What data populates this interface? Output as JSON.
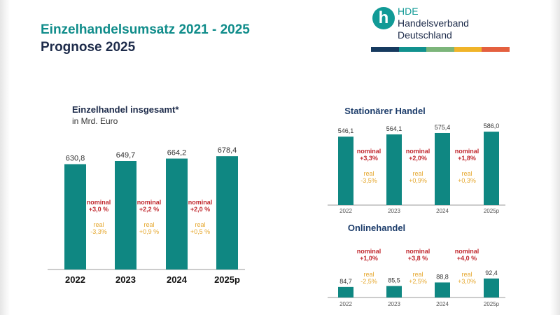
{
  "header": {
    "title_line1": "Einzelhandelsumsatz 2021 - 2025",
    "title_line2": "Prognose 2025"
  },
  "logo": {
    "abbr": "HDE",
    "name_line1": "Handelsverband",
    "name_line2": "Deutschland",
    "stripe_colors": [
      "#163a5f",
      "#11918e",
      "#7cb57a",
      "#f0b429",
      "#e4603f"
    ]
  },
  "colors": {
    "bar": "#0f8782",
    "nominal": "#c0282e",
    "real": "#e5a72d",
    "axis": "#9a9a9a",
    "text": "#333333",
    "section_title": "#1d3d6b"
  },
  "chart_data": [
    {
      "type": "bar",
      "title": "Einzelhandel insgesamt*",
      "subtitle": "in Mrd. Euro",
      "categories": [
        "2022",
        "2023",
        "2024",
        "2025p"
      ],
      "values": [
        630.8,
        649.7,
        664.2,
        678.4
      ],
      "value_labels": [
        "630,8",
        "649,7",
        "664,2",
        "678,4"
      ],
      "ylim": [
        0,
        700
      ],
      "annotations": [
        {
          "nominal_label": "nominal",
          "nominal_value": "+3,0 %",
          "real_label": "real",
          "real_value": "-3,3%"
        },
        {
          "nominal_label": "nominal",
          "nominal_value": "+2,2 %",
          "real_label": "real",
          "real_value": "+0,9 %"
        },
        {
          "nominal_label": "nominal",
          "nominal_value": "+2,0 %",
          "real_label": "real",
          "real_value": "+0,5 %"
        }
      ]
    },
    {
      "type": "bar",
      "title": "Stationärer Handel",
      "categories": [
        "2022",
        "2023",
        "2024",
        "2025p"
      ],
      "values": [
        546.1,
        564.1,
        575.4,
        586.0
      ],
      "value_labels": [
        "546,1",
        "564,1",
        "575,4",
        "586,0"
      ],
      "ylim": [
        0,
        620
      ],
      "annotations": [
        {
          "nominal_label": "nominal",
          "nominal_value": "+3,3%",
          "real_label": "real",
          "real_value": "-3,5%"
        },
        {
          "nominal_label": "nominal",
          "nominal_value": "+2,0%",
          "real_label": "real",
          "real_value": "+0,9%"
        },
        {
          "nominal_label": "nominal",
          "nominal_value": "+1,8%",
          "real_label": "real",
          "real_value": "+0,3%"
        }
      ]
    },
    {
      "type": "bar",
      "title": "Onlinehandel",
      "categories": [
        "2022",
        "2023",
        "2024",
        "2025p"
      ],
      "values": [
        84.7,
        85.5,
        88.8,
        92.4
      ],
      "value_labels": [
        "84,7",
        "85,5",
        "88,8",
        "92,4"
      ],
      "ylim": [
        75,
        100
      ],
      "annotations": [
        {
          "nominal_label": "nominal",
          "nominal_value": "+1,0%",
          "real_label": "real",
          "real_value": "-2,5%"
        },
        {
          "nominal_label": "nominal",
          "nominal_value": "+3,8 %",
          "real_label": "real",
          "real_value": "+2,5%"
        },
        {
          "nominal_label": "nominal",
          "nominal_value": "+4,0 %",
          "real_label": "real",
          "real_value": "+3,0%"
        }
      ]
    }
  ]
}
